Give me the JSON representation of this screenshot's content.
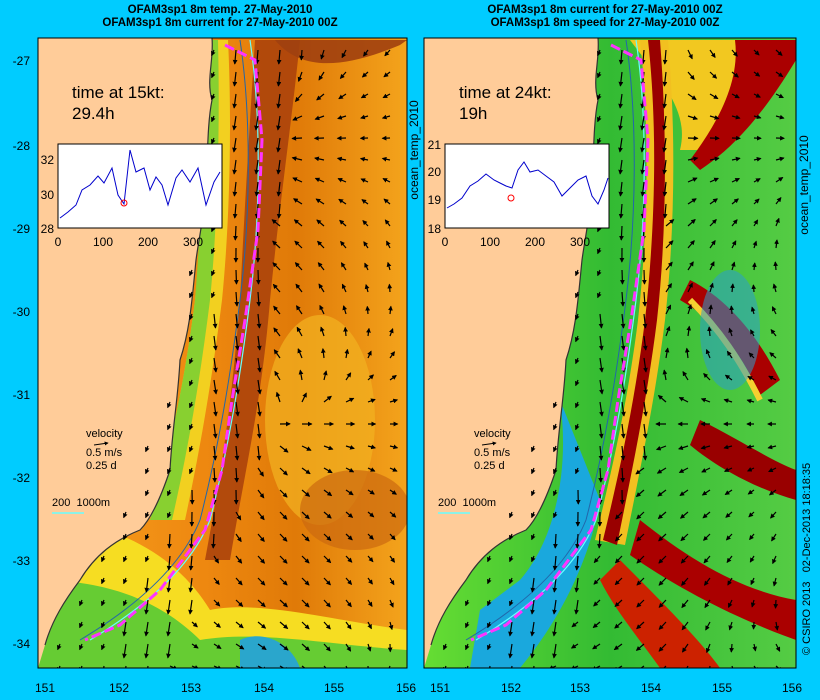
{
  "left_panel": {
    "title_line1": "OFAM3sp1 8m temp. 27-May-2010",
    "title_line2": "OFAM3sp1 8m current for 27-May-2010 00Z",
    "time_label": "time at 15kt:",
    "time_value": "29.4h",
    "inset": {
      "y_ticks": [
        "32",
        "30",
        "28"
      ],
      "x_ticks": [
        "0",
        "100",
        "200",
        "300"
      ],
      "marker_day": 147
    },
    "velocity_label": "velocity",
    "velocity_scale": "0.5 m/s",
    "velocity_time": "0.25 d",
    "depth_legend": "200  1000m"
  },
  "right_panel": {
    "title_line1": "OFAM3sp1 8m current for 27-May-2010 00Z",
    "title_line2": "OFAM3sp1 8m speed for 27-May-2010 00Z",
    "time_label": "time at 24kt:",
    "time_value": "19h",
    "inset": {
      "y_ticks": [
        "21",
        "20",
        "19",
        "18"
      ],
      "x_ticks": [
        "0",
        "100",
        "200",
        "300"
      ],
      "marker_day": 147
    },
    "velocity_label": "velocity",
    "velocity_scale": "0.5 m/s",
    "velocity_time": "0.25 d",
    "depth_legend": "200  1000m"
  },
  "inset_axis_label": "ocean_temp_2010",
  "credit": "© CSIRO 2013   02-Dec-2013 18:18:35",
  "lat_ticks": [
    "-27",
    "-28",
    "-29",
    "-30",
    "-31",
    "-32",
    "-33",
    "-34"
  ],
  "lon_ticks": [
    "151",
    "152",
    "153",
    "154",
    "155",
    "156"
  ],
  "colors": {
    "background": "#00ccff",
    "land": "#ffcc99",
    "track": "#ff33ff",
    "isobath": "#66ffff"
  }
}
